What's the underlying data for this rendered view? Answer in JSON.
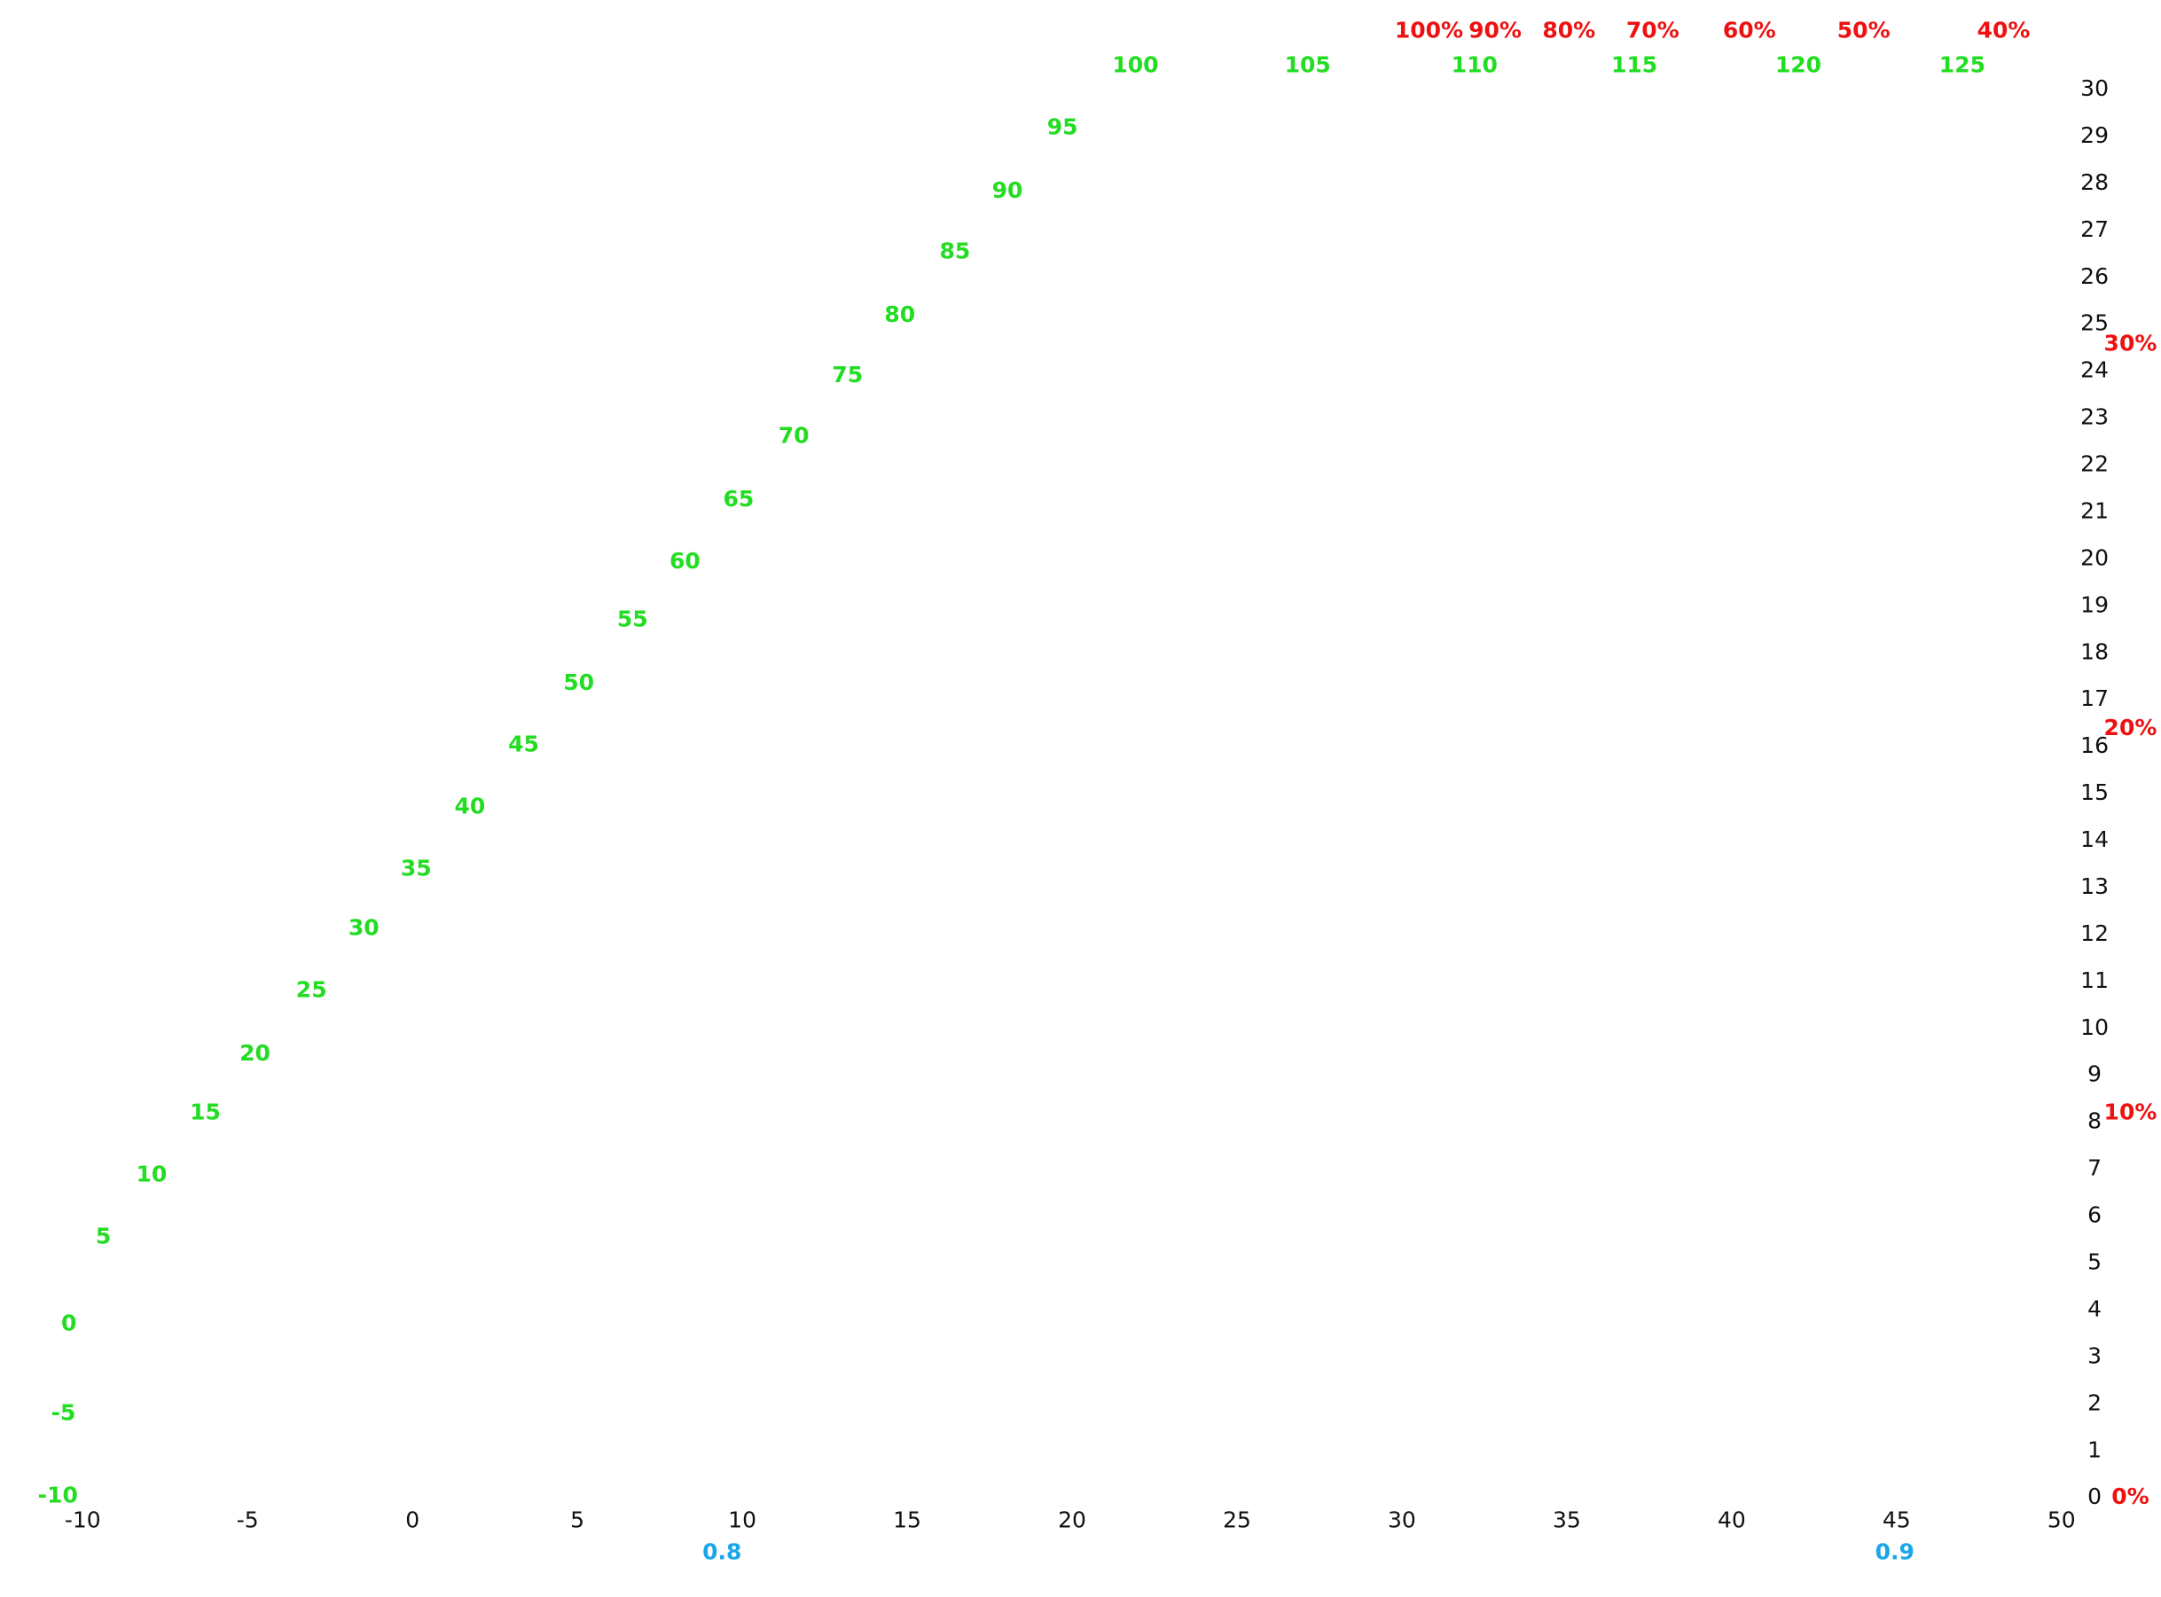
{
  "chart_data": {
    "type": "axes",
    "xlim": [
      -10,
      50
    ],
    "xticks": [
      -10,
      -5,
      0,
      5,
      10,
      15,
      20,
      25,
      30,
      35,
      40,
      45,
      50
    ],
    "ylim": [
      0,
      30
    ],
    "yticks": [
      0,
      1,
      2,
      3,
      4,
      5,
      6,
      7,
      8,
      9,
      10,
      11,
      12,
      13,
      14,
      15,
      16,
      17,
      18,
      19,
      20,
      21,
      22,
      23,
      24,
      25,
      26,
      27,
      28,
      29,
      30
    ],
    "y2lim": [
      0,
      30
    ],
    "y2ticks": [
      {
        "value": 0,
        "label": "0%"
      },
      {
        "value": 10,
        "label": "10%"
      },
      {
        "value": 20,
        "label": "20%"
      },
      {
        "value": 30,
        "label": "30%"
      }
    ],
    "y2color": "#ee1111",
    "x2lim": [
      100,
      40
    ],
    "x2log": true,
    "x2ticks": [
      {
        "value": 100,
        "label": "100%"
      },
      {
        "value": 90,
        "label": "90%"
      },
      {
        "value": 80,
        "label": "80%"
      },
      {
        "value": 70,
        "label": "70%"
      },
      {
        "value": 60,
        "label": "60%"
      },
      {
        "value": 50,
        "label": "50%"
      },
      {
        "value": 40,
        "label": "40%"
      }
    ],
    "x2color": "#ee1111",
    "x3ticks": [
      0.8,
      0.9
    ],
    "x3color": "#1aa6e8",
    "curve_ticks": [
      -10,
      -5,
      0,
      5,
      10,
      15,
      20,
      25,
      30,
      35,
      40,
      45,
      50,
      55,
      60,
      65,
      70,
      75,
      80,
      85,
      90,
      95,
      100,
      105,
      110,
      115,
      120,
      125
    ],
    "curve_color": "#22dd22"
  }
}
